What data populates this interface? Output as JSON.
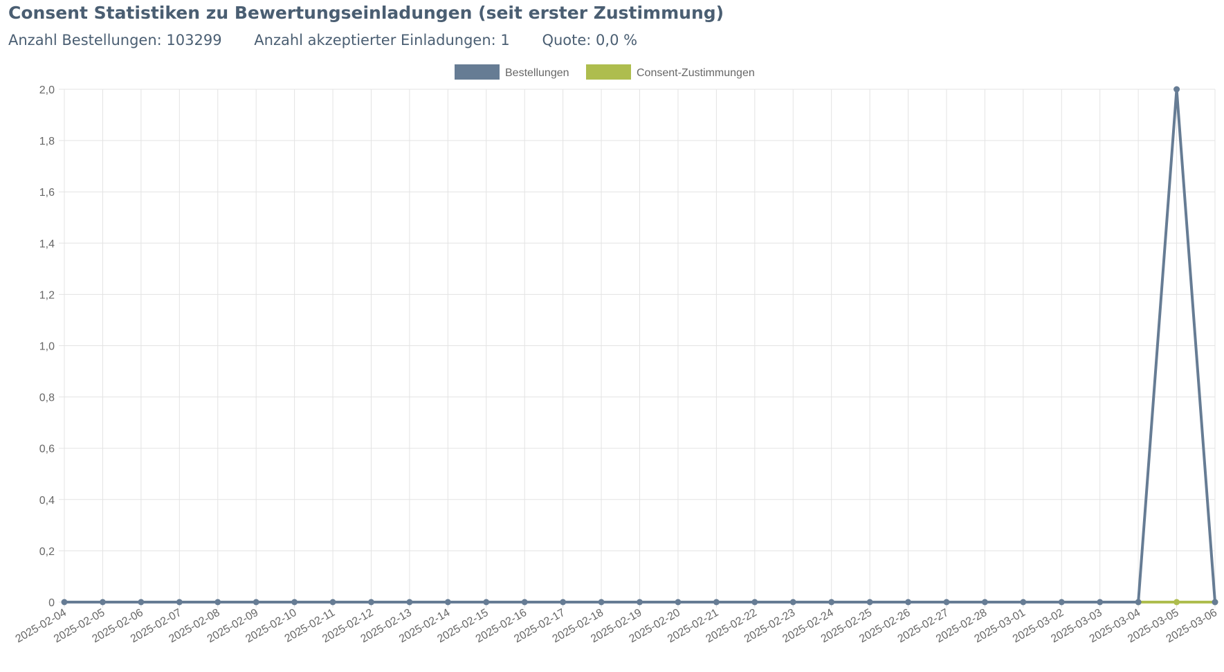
{
  "header": {
    "title": "Consent Statistiken zu Bewertungseinladungen (seit erster Zustimmung)",
    "stats": [
      "Anzahl Bestellungen: 103299",
      "Anzahl akzeptierter Einladungen: 1",
      "Quote: 0,0 %"
    ]
  },
  "colors": {
    "Bestellungen": "#667c94",
    "Consent-Zustimmungen": "#aebd4e",
    "grid": "#e3e3e3",
    "text": "#4a5e72"
  },
  "chart_data": {
    "type": "line",
    "title": "",
    "xlabel": "",
    "ylabel": "",
    "ylim": [
      0,
      2
    ],
    "yticks": [
      "0",
      "0,2",
      "0,4",
      "0,6",
      "0,8",
      "1,0",
      "1,2",
      "1,4",
      "1,6",
      "1,8",
      "2,0"
    ],
    "grid": true,
    "legend_position": "top-center",
    "x": [
      "2025-02-04",
      "2025-02-05",
      "2025-02-06",
      "2025-02-07",
      "2025-02-08",
      "2025-02-09",
      "2025-02-10",
      "2025-02-11",
      "2025-02-12",
      "2025-02-13",
      "2025-02-14",
      "2025-02-15",
      "2025-02-16",
      "2025-02-17",
      "2025-02-18",
      "2025-02-19",
      "2025-02-20",
      "2025-02-21",
      "2025-02-22",
      "2025-02-23",
      "2025-02-24",
      "2025-02-25",
      "2025-02-26",
      "2025-02-27",
      "2025-02-28",
      "2025-03-01",
      "2025-03-02",
      "2025-03-03",
      "2025-03-04",
      "2025-03-05",
      "2025-03-06"
    ],
    "series": [
      {
        "name": "Bestellungen",
        "values": [
          0,
          0,
          0,
          0,
          0,
          0,
          0,
          0,
          0,
          0,
          0,
          0,
          0,
          0,
          0,
          0,
          0,
          0,
          0,
          0,
          0,
          0,
          0,
          0,
          0,
          0,
          0,
          0,
          0,
          2,
          0
        ]
      },
      {
        "name": "Consent-Zustimmungen",
        "values": [
          null,
          null,
          null,
          null,
          null,
          null,
          null,
          null,
          null,
          null,
          null,
          null,
          null,
          null,
          null,
          null,
          null,
          null,
          null,
          null,
          null,
          null,
          null,
          null,
          null,
          null,
          null,
          null,
          0,
          0,
          0
        ]
      }
    ]
  }
}
